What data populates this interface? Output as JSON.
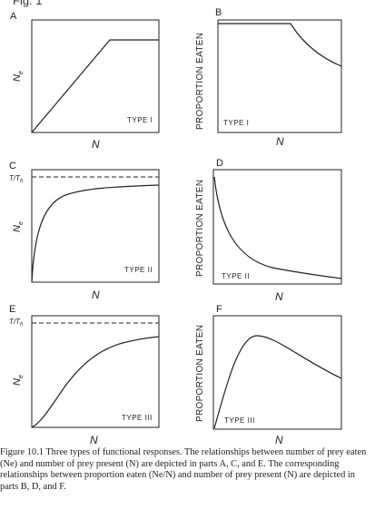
{
  "figure_label": "Fig. 1",
  "panels": [
    {
      "id": "A",
      "y_label": "N",
      "y_sub": "e",
      "x_label": "N",
      "type_label": "TYPE I",
      "ref_label": ""
    },
    {
      "id": "B",
      "y_label": "PROPORTION EATEN",
      "x_label": "N",
      "type_label": "TYPE I",
      "ref_label": ""
    },
    {
      "id": "C",
      "y_label": "N",
      "y_sub": "e",
      "x_label": "N",
      "type_label": "TYPE II",
      "ref_label": "T/T",
      "ref_sub": "h"
    },
    {
      "id": "D",
      "y_label": "PROPORTION EATEN",
      "x_label": "N",
      "type_label": "TYPE II",
      "ref_label": ""
    },
    {
      "id": "E",
      "y_label": "N",
      "y_sub": "e",
      "x_label": "N",
      "type_label": "TYPE III",
      "ref_label": "T/T",
      "ref_sub": "h"
    },
    {
      "id": "F",
      "y_label": "PROPORTION EATEN",
      "x_label": "N",
      "type_label": "TYPE III",
      "ref_label": ""
    }
  ],
  "caption": {
    "text": "Figure 10.1  Three types of functional responses. The relationships between number of prey eaten (Ne) and number of prey present (N) are depicted in parts A, C, and E. The corresponding relationships between proportion eaten (Ne/N) and number of prey present (N) are depicted in parts B, D, and F."
  }
}
